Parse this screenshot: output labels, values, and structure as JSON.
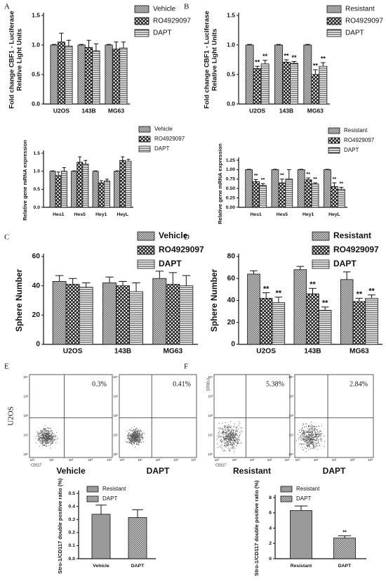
{
  "chart_data": [
    {
      "type": "bar",
      "panel": "A",
      "ylabel": [
        "Fold change CBF1 - Luciferase",
        "Relative Light Units"
      ],
      "categories": [
        "U2OS",
        "143B",
        "MG63"
      ],
      "series": [
        {
          "name": "Vehicle",
          "pattern": "checker",
          "values": [
            1.0,
            1.0,
            1.0
          ],
          "errors": [
            0.01,
            0.01,
            0.01
          ]
        },
        {
          "name": "RO4929097",
          "pattern": "cross",
          "values": [
            1.05,
            0.96,
            0.93
          ],
          "errors": [
            0.15,
            0.12,
            0.12
          ]
        },
        {
          "name": "DAPT",
          "pattern": "hlines",
          "values": [
            0.98,
            0.9,
            0.95
          ],
          "errors": [
            0.1,
            0.12,
            0.1
          ]
        }
      ],
      "ylim": [
        0,
        1.5
      ],
      "yticks": [
        {
          "value": 0,
          "label": "0.0"
        },
        {
          "value": 0.5,
          "label": "0.5"
        },
        {
          "value": 1,
          "label": "1.0"
        },
        {
          "value": 1.5,
          "label": "1.5"
        }
      ]
    },
    {
      "type": "bar",
      "panel": "B",
      "ylabel": [
        "Fold change CBF1 - Luciferase",
        "Relative Light Units"
      ],
      "categories": [
        "U2OS",
        "143B",
        "MG63"
      ],
      "series": [
        {
          "name": "Resistant",
          "pattern": "checker",
          "values": [
            1.0,
            1.0,
            1.0
          ],
          "errors": [
            0.01,
            0.01,
            0.01
          ]
        },
        {
          "name": "RO4929097",
          "pattern": "cross",
          "values": [
            0.6,
            0.71,
            0.5
          ],
          "errors": [
            0.04,
            0.04,
            0.08
          ],
          "significance": [
            "**",
            "**",
            "**"
          ]
        },
        {
          "name": "DAPT",
          "pattern": "hlines",
          "values": [
            0.68,
            0.69,
            0.64
          ],
          "errors": [
            0.06,
            0.03,
            0.06
          ],
          "significance": [
            "**",
            "**",
            "**"
          ]
        }
      ],
      "ylim": [
        0,
        1.5
      ],
      "yticks": [
        {
          "value": 0,
          "label": "0.0"
        },
        {
          "value": 0.5,
          "label": "0.5"
        },
        {
          "value": 1,
          "label": "1.0"
        },
        {
          "value": 1.5,
          "label": "1.5"
        }
      ]
    },
    {
      "type": "bar",
      "ylabel": "Relative gene mRNA expression",
      "categories": [
        "Hes1",
        "Hes5",
        "Hey1",
        "HeyL"
      ],
      "series": [
        {
          "name": "Vehicle",
          "pattern": "checker",
          "values": [
            1.0,
            1.0,
            1.0,
            1.0
          ],
          "errors": [
            0.01,
            0.01,
            0.01,
            0.01
          ]
        },
        {
          "name": "RO4929097",
          "pattern": "cross",
          "values": [
            0.88,
            1.25,
            0.68,
            1.3
          ],
          "errors": [
            0.1,
            0.15,
            0.06,
            0.1
          ]
        },
        {
          "name": "DAPT",
          "pattern": "hlines",
          "values": [
            1.0,
            1.2,
            0.73,
            1.28
          ],
          "errors": [
            0.1,
            0.1,
            0.05,
            0.05
          ]
        }
      ],
      "ylim": [
        0,
        1.5
      ],
      "yticks": [
        {
          "value": 0,
          "label": "0.0"
        },
        {
          "value": 0.5,
          "label": "0.5"
        },
        {
          "value": 1,
          "label": "1.0"
        },
        {
          "value": 1.5,
          "label": "1.5"
        }
      ]
    },
    {
      "type": "bar",
      "ylabel": "Relative gene mRNA expression",
      "categories": [
        "Hes1",
        "Hes5",
        "Hey1",
        "HeyL"
      ],
      "series": [
        {
          "name": "Resistant",
          "pattern": "checker",
          "values": [
            1.0,
            1.0,
            1.0,
            1.0
          ],
          "errors": [
            0.01,
            0.01,
            0.01,
            0.01
          ]
        },
        {
          "name": "RO4929097",
          "pattern": "cross",
          "values": [
            0.68,
            0.65,
            0.73,
            0.55
          ],
          "errors": [
            0.06,
            0.1,
            0.05,
            0.1
          ],
          "significance": [
            "**",
            "**",
            "**",
            "**"
          ]
        },
        {
          "name": "DAPT",
          "pattern": "hlines",
          "values": [
            0.58,
            0.75,
            0.62,
            0.48
          ],
          "errors": [
            0.05,
            0.25,
            0.03,
            0.05
          ],
          "significance": [
            "**",
            null,
            "**",
            "**"
          ]
        }
      ],
      "ylim": [
        0,
        1.25
      ],
      "yticks": [
        {
          "value": 0,
          "label": "0.00"
        },
        {
          "value": 0.25,
          "label": "0.25"
        },
        {
          "value": 0.5,
          "label": "0.50"
        },
        {
          "value": 0.75,
          "label": "0.75"
        },
        {
          "value": 1,
          "label": "1.00"
        },
        {
          "value": 1.25,
          "label": "1.25"
        }
      ]
    },
    {
      "type": "bar",
      "panel": "C",
      "ylabel": "Sphere Number",
      "categories": [
        "U2OS",
        "143B",
        "MG63"
      ],
      "series": [
        {
          "name": "Vehicle",
          "pattern": "checker",
          "values": [
            43,
            42,
            45
          ],
          "errors": [
            4,
            4,
            5
          ]
        },
        {
          "name": "RO4929097",
          "pattern": "cross",
          "values": [
            41,
            40,
            41
          ],
          "errors": [
            4,
            3,
            8
          ]
        },
        {
          "name": "DAPT",
          "pattern": "hlines",
          "values": [
            39,
            36,
            40
          ],
          "errors": [
            3,
            6,
            7
          ]
        }
      ],
      "ylim": [
        0,
        60
      ],
      "yticks": [
        0,
        20,
        40,
        60
      ]
    },
    {
      "type": "bar",
      "panel": "D",
      "ylabel": "Sphere Number",
      "categories": [
        "U2OS",
        "143B",
        "MG63"
      ],
      "series": [
        {
          "name": "Resistant",
          "pattern": "checker",
          "values": [
            64,
            68,
            59
          ],
          "errors": [
            3,
            3,
            7
          ]
        },
        {
          "name": "RO4929097",
          "pattern": "cross",
          "values": [
            42,
            46,
            39
          ],
          "errors": [
            5,
            5,
            3
          ],
          "significance": [
            "**",
            "**",
            "**"
          ]
        },
        {
          "name": "DAPT",
          "pattern": "hlines",
          "values": [
            38,
            31,
            42
          ],
          "errors": [
            5,
            3,
            3
          ],
          "significance": [
            "**",
            "**",
            "**"
          ]
        }
      ],
      "ylim": [
        0,
        80
      ],
      "yticks": [
        0,
        20,
        40,
        60,
        80
      ]
    },
    {
      "type": "bar",
      "grouped": false,
      "ylabel": "Stro-1/CD117 double positive ratio (%)",
      "categories": [
        "Vehicle",
        "DAPT"
      ],
      "series": [
        {
          "name": "Resistant",
          "pattern": "solid",
          "values": [
            0.34,
            null
          ],
          "errors": [
            0.07,
            null
          ]
        },
        {
          "name": "DAPT",
          "pattern": "checker",
          "values": [
            null,
            0.315
          ],
          "errors": [
            null,
            0.06
          ]
        }
      ],
      "ylim": [
        0,
        0.5
      ],
      "yticks": [
        {
          "value": 0,
          "label": "0.0"
        },
        {
          "value": 0.1,
          "label": "0.1"
        },
        {
          "value": 0.2,
          "label": "0.2"
        },
        {
          "value": 0.3,
          "label": "0.3"
        },
        {
          "value": 0.4,
          "label": "0.4"
        },
        {
          "value": 0.5,
          "label": "0.5"
        }
      ]
    },
    {
      "type": "bar",
      "grouped": false,
      "ylabel": "Stro-1/CD117 double positive ratio (%)",
      "categories": [
        "Resistant",
        "DAPT"
      ],
      "series": [
        {
          "name": "Resistant",
          "pattern": "solid",
          "values": [
            6.3,
            null
          ],
          "errors": [
            0.6,
            null
          ]
        },
        {
          "name": "DAPT",
          "pattern": "checker",
          "values": [
            null,
            2.7
          ],
          "errors": [
            null,
            0.3
          ],
          "significance": [
            null,
            "**"
          ]
        }
      ],
      "ylim": [
        0,
        8
      ],
      "yticks": [
        0,
        2,
        4,
        6,
        8
      ]
    }
  ],
  "flow_cytometry": {
    "ticks": [
      "10⁰",
      "10¹",
      "10²",
      "10³",
      "10⁴"
    ],
    "x_axis": "CD117",
    "panels": [
      {
        "letter": "E",
        "row_label": "U2OS",
        "plots": [
          {
            "condition": "Vehicle",
            "percent": "0.3%"
          },
          {
            "condition": "DAPT",
            "percent": "0.41%"
          }
        ]
      },
      {
        "letter": "F",
        "y_axis": "STRO-1",
        "plots": [
          {
            "condition": "Resistant",
            "percent": "5.38%"
          },
          {
            "condition": "DAPT",
            "percent": "2.84%"
          }
        ]
      }
    ]
  }
}
